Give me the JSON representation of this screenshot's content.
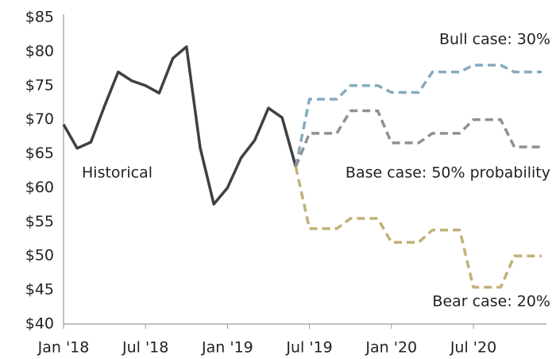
{
  "chart_data": {
    "type": "line",
    "categories": [
      "Jan '18",
      null,
      null,
      null,
      null,
      null,
      "Jul '18",
      null,
      null,
      null,
      null,
      null,
      "Jan '19",
      null,
      null,
      null,
      null,
      null,
      "Jul '19",
      null,
      null,
      null,
      null,
      null,
      "Jan '20",
      null,
      null,
      null,
      null,
      null,
      "Jul '20",
      null,
      null,
      null,
      null,
      null
    ],
    "series": [
      {
        "name": "Historical",
        "color": "#3f4045",
        "dashed": false,
        "values": [
          69.3,
          65.8,
          66.7,
          72.0,
          77.0,
          75.7,
          75.0,
          73.9,
          79.0,
          80.7,
          65.9,
          57.6,
          60.0,
          64.4,
          67.0,
          71.7,
          70.3,
          63.1,
          null,
          null,
          null,
          null,
          null,
          null,
          null,
          null,
          null,
          null,
          null,
          null,
          null,
          null,
          null,
          null,
          null,
          null
        ]
      },
      {
        "name": "Bull case: 30%",
        "color": "#85abbd",
        "dashed": true,
        "values": [
          null,
          null,
          null,
          null,
          null,
          null,
          null,
          null,
          null,
          null,
          null,
          null,
          null,
          null,
          null,
          null,
          null,
          63.1,
          73,
          73,
          73,
          75,
          75,
          75,
          74,
          74,
          74,
          77,
          77,
          77,
          78,
          78,
          78,
          77,
          77,
          77
        ]
      },
      {
        "name": "Base case: 50% probability",
        "color": "#8d9095",
        "dashed": true,
        "values": [
          null,
          null,
          null,
          null,
          null,
          null,
          null,
          null,
          null,
          null,
          null,
          null,
          null,
          null,
          null,
          null,
          null,
          63.1,
          68,
          68,
          68,
          71.3,
          71.3,
          71.3,
          66.6,
          66.6,
          66.6,
          68,
          68,
          68,
          70,
          70,
          70,
          66,
          66,
          66
        ]
      },
      {
        "name": "Bear case: 20%",
        "color": "#c2b177",
        "dashed": true,
        "values": [
          null,
          null,
          null,
          null,
          null,
          null,
          null,
          null,
          null,
          null,
          null,
          null,
          null,
          null,
          null,
          null,
          null,
          63.1,
          54,
          54,
          54,
          55.5,
          55.5,
          55.5,
          52,
          52,
          52,
          53.8,
          53.8,
          53.8,
          45.4,
          45.4,
          45.4,
          50,
          50,
          50
        ]
      }
    ],
    "ylim": [
      40,
      85
    ],
    "yticks": [
      {
        "value": 40,
        "label": "$40"
      },
      {
        "value": 45,
        "label": "$45"
      },
      {
        "value": 50,
        "label": "$50"
      },
      {
        "value": 55,
        "label": "$55"
      },
      {
        "value": 60,
        "label": "$60"
      },
      {
        "value": 65,
        "label": "$65"
      },
      {
        "value": 70,
        "label": "$70"
      },
      {
        "value": 75,
        "label": "$75"
      },
      {
        "value": 80,
        "label": "$80"
      },
      {
        "value": 85,
        "label": "$85"
      }
    ],
    "grid": false
  }
}
